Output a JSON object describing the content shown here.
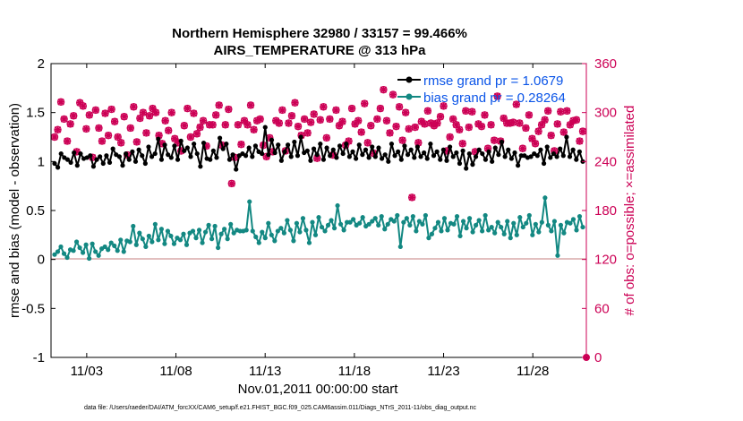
{
  "chart_data": {
    "type": "line",
    "title": "Northern Hemisphere 32980 / 33157 = 99.466%",
    "subtitle": "AIRS_TEMPERATURE @ 313 hPa",
    "xlabel": "Nov.01,2011 00:00:00 start",
    "ylabel_left": "rmse and bias (model - observation)",
    "ylabel_right": "# of obs: o=possible; ×=assimilated",
    "xlim": [
      1.0,
      31.0
    ],
    "ylim_left": [
      -1,
      2
    ],
    "ylim_right": [
      0,
      360
    ],
    "x_ticks": [
      {
        "value": 3,
        "label": "11/03"
      },
      {
        "value": 8,
        "label": "11/08"
      },
      {
        "value": 13,
        "label": "11/13"
      },
      {
        "value": 18,
        "label": "11/18"
      },
      {
        "value": 23,
        "label": "11/23"
      },
      {
        "value": 28,
        "label": "11/28"
      }
    ],
    "y_ticks_left": [
      {
        "value": 2,
        "label": "2"
      },
      {
        "value": 1.5,
        "label": "1.5"
      },
      {
        "value": 1,
        "label": "1"
      },
      {
        "value": 0.5,
        "label": "0.5"
      },
      {
        "value": 0,
        "label": "0"
      },
      {
        "value": -0.5,
        "label": "-0.5"
      },
      {
        "value": -1,
        "label": "-1"
      }
    ],
    "y_ticks_right": [
      {
        "value": 360,
        "label": "360"
      },
      {
        "value": 300,
        "label": "300"
      },
      {
        "value": 240,
        "label": "240"
      },
      {
        "value": 180,
        "label": "180"
      },
      {
        "value": 120,
        "label": "120"
      },
      {
        "value": 60,
        "label": "60"
      },
      {
        "value": 0,
        "label": "0"
      }
    ],
    "zero_line": 0,
    "legend_position": "top-right",
    "series": [
      {
        "name": "rmse grand pr = 1.0679",
        "axis": "left",
        "color": "#000000",
        "marker": "filled-circle",
        "values": [
          0.98,
          0.94,
          1.08,
          1.04,
          1.02,
          0.99,
          1.09,
          0.96,
          1.08,
          1.03,
          1.04,
          1.06,
          0.95,
          1.02,
          1.05,
          0.98,
          1.06,
          0.99,
          1.13,
          1.07,
          1.05,
          0.96,
          1.08,
          1.02,
          1.1,
          1.0,
          1.12,
          1.06,
          0.98,
          1.15,
          1.05,
          1.08,
          1.23,
          1.02,
          1.17,
          1.07,
          1.04,
          1.16,
          1.02,
          1.21,
          1.11,
          1.14,
          1.05,
          1.18,
          1.08,
          0.95,
          1.19,
          1.03,
          1.02,
          1.11,
          1.04,
          1.24,
          1.13,
          1.18,
          1.02,
          1.07,
          0.92,
          1.06,
          1.08,
          1.06,
          1.14,
          1.05,
          1.16,
          1.1,
          1.08,
          1.35,
          1.07,
          1.22,
          1.09,
          1.17,
          1.01,
          1.1,
          1.17,
          1.05,
          1.2,
          1.06,
          1.25,
          1.09,
          1.11,
          1.01,
          1.13,
          1.07,
          1.18,
          1.02,
          1.14,
          1.06,
          1.12,
          1.04,
          1.16,
          1.08,
          1.18,
          1.05,
          1.1,
          1.03,
          1.17,
          1.07,
          1.12,
          1.04,
          1.15,
          1.05,
          1.14,
          1.03,
          1.07,
          1.0,
          1.18,
          1.06,
          1.1,
          1.02,
          1.16,
          1.07,
          1.12,
          1.04,
          1.15,
          1.05,
          1.09,
          1.03,
          1.18,
          1.06,
          1.1,
          1.02,
          1.12,
          1.01,
          1.15,
          1.05,
          1.09,
          0.98,
          1.11,
          0.93,
          1.08,
          0.97,
          1.05,
          1.12,
          1.08,
          1.02,
          1.1,
          1.0,
          1.14,
          1.07,
          1.2,
          1.05,
          1.12,
          1.03,
          1.09,
          0.96,
          1.06,
          1.06,
          1.04,
          1.05,
          1.08,
          1.06,
          1.12,
          0.98,
          1.15,
          1.04,
          1.08,
          1.05,
          1.13,
          1.06,
          1.25,
          1.05,
          1.12,
          1.02,
          1.1,
          1.0
        ]
      },
      {
        "name": "bias grand pr = 0.28264",
        "axis": "left",
        "color": "#138882",
        "marker": "filled-circle",
        "values": [
          0.05,
          0.08,
          0.13,
          0.06,
          0.02,
          0.1,
          0.09,
          0.18,
          0.12,
          0.07,
          0.15,
          0.01,
          0.16,
          0.08,
          0.04,
          0.11,
          0.13,
          0.1,
          0.17,
          0.14,
          0.09,
          0.2,
          0.08,
          0.19,
          0.18,
          0.34,
          0.15,
          0.27,
          0.21,
          0.13,
          0.24,
          0.18,
          0.36,
          0.2,
          0.31,
          0.16,
          0.29,
          0.24,
          0.16,
          0.22,
          0.2,
          0.26,
          0.15,
          0.27,
          0.29,
          0.22,
          0.3,
          0.17,
          0.28,
          0.35,
          0.21,
          0.34,
          0.12,
          0.26,
          0.31,
          0.21,
          0.36,
          0.27,
          0.3,
          0.29,
          0.29,
          0.3,
          0.59,
          0.29,
          0.23,
          0.17,
          0.28,
          0.22,
          0.37,
          0.25,
          0.19,
          0.29,
          0.32,
          0.27,
          0.4,
          0.3,
          0.19,
          0.37,
          0.28,
          0.42,
          0.3,
          0.17,
          0.38,
          0.25,
          0.43,
          0.33,
          0.29,
          0.35,
          0.4,
          0.32,
          0.55,
          0.36,
          0.3,
          0.38,
          0.38,
          0.41,
          0.35,
          0.37,
          0.43,
          0.34,
          0.36,
          0.39,
          0.42,
          0.35,
          0.44,
          0.31,
          0.36,
          0.41,
          0.39,
          0.45,
          0.13,
          0.38,
          0.42,
          0.35,
          0.44,
          0.29,
          0.39,
          0.36,
          0.45,
          0.22,
          0.26,
          0.32,
          0.38,
          0.29,
          0.42,
          0.3,
          0.37,
          0.36,
          0.44,
          0.24,
          0.39,
          0.32,
          0.42,
          0.28,
          0.35,
          0.4,
          0.29,
          0.45,
          0.3,
          0.33,
          0.27,
          0.38,
          0.33,
          0.26,
          0.39,
          0.22,
          0.37,
          0.25,
          0.43,
          0.33,
          0.37,
          0.45,
          0.25,
          0.36,
          0.28,
          0.38,
          0.63,
          0.35,
          0.29,
          0.39,
          0.04,
          0.35,
          0.27,
          0.38,
          0.37,
          0.41,
          0.3,
          0.44,
          0.33
        ]
      },
      {
        "name": "# of obs possible",
        "axis": "right",
        "color": "#cc0055",
        "marker": "open-circle",
        "values": [
          270,
          279,
          313,
          292,
          265,
          286,
          296,
          252,
          312,
          308,
          280,
          297,
          245,
          303,
          281,
          265,
          299,
          272,
          304,
          289,
          270,
          263,
          295,
          248,
          281,
          307,
          264,
          293,
          300,
          275,
          296,
          305,
          300,
          272,
          262,
          290,
          278,
          300,
          268,
          263,
          253,
          284,
          305,
          270,
          299,
          274,
          282,
          290,
          259,
          285,
          285,
          297,
          309,
          260,
          285,
          304,
          213,
          245,
          285,
          261,
          290,
          285,
          309,
          279,
          290,
          292,
          260,
          246,
          269,
          252,
          290,
          287,
          303,
          253,
          287,
          296,
          312,
          283,
          272,
          292,
          275,
          288,
          298,
          244,
          291,
          307,
          269,
          292,
          248,
          303,
          284,
          289,
          260,
          265,
          305,
          286,
          290,
          276,
          311,
          263,
          284,
          250,
          292,
          305,
          328,
          290,
          275,
          322,
          283,
          307,
          266,
          300,
          280,
          196,
          282,
          263,
          289,
          286,
          302,
          287,
          284,
          287,
          295,
          308,
          253,
          270,
          292,
          285,
          279,
          262,
          302,
          282,
          301,
          252,
          286,
          283,
          297,
          256,
          285,
          266,
          320,
          265,
          293,
          287,
          287,
          288,
          310,
          287,
          256,
          281,
          297,
          268,
          262,
          277,
          285,
          291,
          302,
          272,
          253,
          286,
          301,
          276,
          302,
          285,
          290,
          291,
          265,
          277
        ]
      },
      {
        "name": "# of obs assimilated",
        "axis": "right",
        "color": "#cc0055",
        "marker": "x",
        "values": [
          270,
          279,
          313,
          292,
          265,
          286,
          296,
          252,
          312,
          308,
          280,
          297,
          245,
          303,
          281,
          265,
          299,
          272,
          304,
          289,
          270,
          263,
          295,
          248,
          281,
          307,
          264,
          293,
          300,
          275,
          296,
          305,
          300,
          272,
          262,
          290,
          278,
          300,
          268,
          263,
          253,
          284,
          305,
          270,
          299,
          274,
          282,
          290,
          259,
          285,
          285,
          297,
          309,
          260,
          285,
          304,
          213,
          245,
          285,
          261,
          290,
          285,
          309,
          279,
          290,
          292,
          260,
          246,
          269,
          252,
          290,
          287,
          303,
          253,
          287,
          296,
          312,
          283,
          272,
          292,
          275,
          288,
          298,
          244,
          291,
          307,
          269,
          292,
          248,
          303,
          284,
          289,
          260,
          265,
          305,
          286,
          290,
          276,
          311,
          263,
          284,
          250,
          292,
          305,
          328,
          290,
          275,
          322,
          283,
          307,
          266,
          300,
          280,
          196,
          282,
          263,
          289,
          286,
          302,
          287,
          284,
          287,
          295,
          308,
          253,
          270,
          292,
          285,
          279,
          262,
          302,
          282,
          301,
          252,
          286,
          283,
          297,
          256,
          285,
          266,
          320,
          265,
          293,
          287,
          287,
          288,
          310,
          287,
          256,
          281,
          297,
          268,
          262,
          277,
          285,
          291,
          302,
          272,
          253,
          286,
          301,
          276,
          302,
          285,
          290,
          291,
          265,
          277
        ]
      }
    ],
    "footer": "data file: /Users/raeder/DAI/ATM_forcXX/CAM6_setup/f.e21.FHIST_BGC.f09_025.CAM6assim.011/Diags_NTrS_2011-11/obs_diag_output.nc"
  },
  "colors": {
    "rmse": "#000000",
    "bias": "#138882",
    "obs": "#cc0055",
    "legend_text": "#0b55e8",
    "zero_line": "#d9aaaa",
    "axis": "#000000"
  }
}
